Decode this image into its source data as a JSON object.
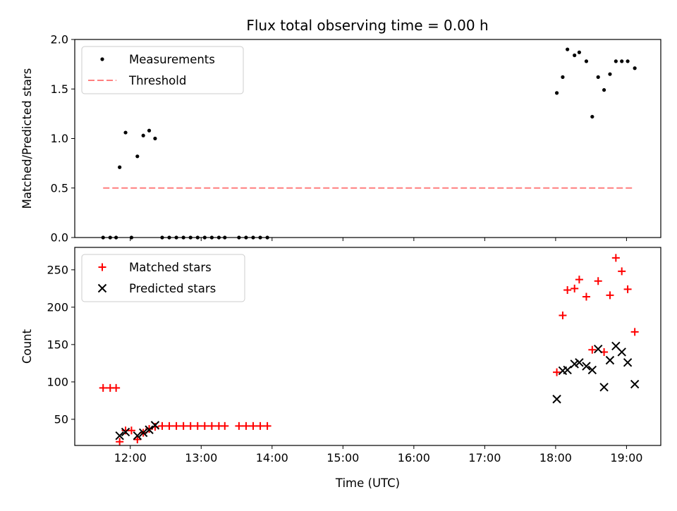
{
  "title": "Flux total observing time = 0.00 h",
  "chart_data": [
    {
      "type": "scatter",
      "ylabel": "Matched/Predicted stars",
      "ylim": [
        0,
        2.0
      ],
      "yticks": [
        0.0,
        0.5,
        1.0,
        1.5,
        2.0
      ],
      "ytick_labels": [
        "0.0",
        "0.5",
        "1.0",
        "1.5",
        "2.0"
      ],
      "legend": [
        {
          "label": "Measurements",
          "marker": "dot",
          "color": "#000000"
        },
        {
          "label": "Threshold",
          "marker": "dashed-line",
          "color": "#ff7f7f"
        }
      ],
      "threshold": {
        "value": 0.5,
        "x_start": "11:37",
        "x_end": "19:07",
        "color": "#ff7f7f"
      },
      "series": [
        {
          "marker": "dot",
          "color": "#000000",
          "points": [
            [
              "11:37",
              0
            ],
            [
              "11:43",
              0
            ],
            [
              "11:48",
              0
            ],
            [
              "11:51",
              0.71
            ],
            [
              "11:56",
              1.06
            ],
            [
              "12:01",
              0
            ],
            [
              "12:06",
              0.82
            ],
            [
              "12:11",
              1.03
            ],
            [
              "12:16",
              1.08
            ],
            [
              "12:21",
              1.0
            ],
            [
              "12:27",
              0
            ],
            [
              "12:33",
              0
            ],
            [
              "12:39",
              0
            ],
            [
              "12:45",
              0
            ],
            [
              "12:51",
              0
            ],
            [
              "12:57",
              0
            ],
            [
              "13:03",
              0
            ],
            [
              "13:09",
              0
            ],
            [
              "13:15",
              0
            ],
            [
              "13:20",
              0
            ],
            [
              "13:32",
              0
            ],
            [
              "13:38",
              0
            ],
            [
              "13:44",
              0
            ],
            [
              "13:50",
              0
            ],
            [
              "13:56",
              0
            ],
            [
              "18:01",
              1.46
            ],
            [
              "18:06",
              1.62
            ],
            [
              "18:10",
              1.9
            ],
            [
              "18:16",
              1.84
            ],
            [
              "18:20",
              1.87
            ],
            [
              "18:26",
              1.78
            ],
            [
              "18:31",
              1.22
            ],
            [
              "18:36",
              1.62
            ],
            [
              "18:41",
              1.49
            ],
            [
              "18:46",
              1.65
            ],
            [
              "18:51",
              1.78
            ],
            [
              "18:56",
              1.78
            ],
            [
              "19:01",
              1.78
            ],
            [
              "19:07",
              1.71
            ]
          ]
        }
      ]
    },
    {
      "type": "scatter",
      "xlabel": "Time (UTC)",
      "ylabel": "Count",
      "xlim": [
        "11:13",
        "19:29"
      ],
      "xticks": [
        "12:00",
        "13:00",
        "14:00",
        "15:00",
        "16:00",
        "17:00",
        "18:00",
        "19:00"
      ],
      "ylim": [
        15,
        280
      ],
      "yticks": [
        50,
        100,
        150,
        200,
        250
      ],
      "ytick_labels": [
        "50",
        "100",
        "150",
        "200",
        "250"
      ],
      "legend": [
        {
          "label": "Matched stars",
          "marker": "plus",
          "color": "#ff0000"
        },
        {
          "label": "Predicted stars",
          "marker": "x",
          "color": "#000000"
        }
      ],
      "series": [
        {
          "name": "Matched stars",
          "marker": "plus",
          "color": "#ff0000",
          "points": [
            [
              "11:37",
              92
            ],
            [
              "11:43",
              92
            ],
            [
              "11:48",
              92
            ],
            [
              "11:51",
              20
            ],
            [
              "11:56",
              35
            ],
            [
              "12:01",
              35
            ],
            [
              "12:06",
              23
            ],
            [
              "12:11",
              32
            ],
            [
              "12:16",
              37
            ],
            [
              "12:21",
              40
            ],
            [
              "12:27",
              41
            ],
            [
              "12:33",
              41
            ],
            [
              "12:39",
              41
            ],
            [
              "12:45",
              41
            ],
            [
              "12:51",
              41
            ],
            [
              "12:57",
              41
            ],
            [
              "13:03",
              41
            ],
            [
              "13:09",
              41
            ],
            [
              "13:15",
              41
            ],
            [
              "13:20",
              41
            ],
            [
              "13:32",
              41
            ],
            [
              "13:38",
              41
            ],
            [
              "13:44",
              41
            ],
            [
              "13:50",
              41
            ],
            [
              "13:56",
              41
            ],
            [
              "18:01",
              113
            ],
            [
              "18:06",
              189
            ],
            [
              "18:10",
              223
            ],
            [
              "18:16",
              225
            ],
            [
              "18:20",
              237
            ],
            [
              "18:26",
              214
            ],
            [
              "18:31",
              143
            ],
            [
              "18:36",
              235
            ],
            [
              "18:41",
              140
            ],
            [
              "18:46",
              216
            ],
            [
              "18:51",
              266
            ],
            [
              "18:56",
              248
            ],
            [
              "19:01",
              224
            ],
            [
              "19:07",
              167
            ]
          ]
        },
        {
          "name": "Predicted stars",
          "marker": "x",
          "color": "#000000",
          "points": [
            [
              "11:51",
              28
            ],
            [
              "11:56",
              33
            ],
            [
              "12:06",
              28
            ],
            [
              "12:11",
              32
            ],
            [
              "12:16",
              36
            ],
            [
              "12:21",
              42
            ],
            [
              "18:01",
              77
            ],
            [
              "18:06",
              115
            ],
            [
              "18:10",
              116
            ],
            [
              "18:16",
              124
            ],
            [
              "18:20",
              126
            ],
            [
              "18:26",
              121
            ],
            [
              "18:31",
              116
            ],
            [
              "18:36",
              144
            ],
            [
              "18:41",
              93
            ],
            [
              "18:46",
              129
            ],
            [
              "18:51",
              148
            ],
            [
              "18:56",
              140
            ],
            [
              "19:01",
              126
            ],
            [
              "19:07",
              97
            ]
          ]
        }
      ]
    }
  ]
}
